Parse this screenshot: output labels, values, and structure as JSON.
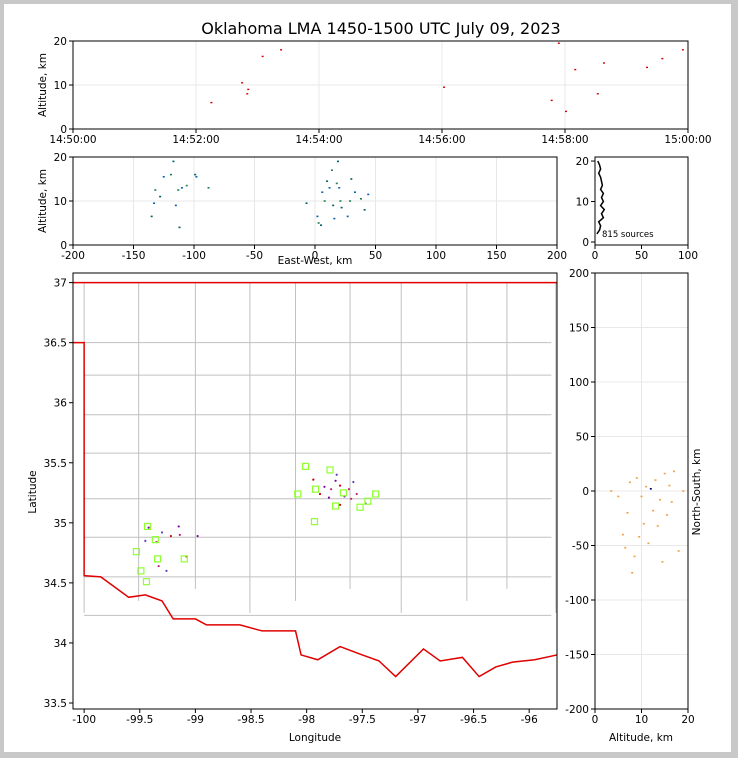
{
  "title": "Oklahoma LMA 1450-1500 UTC July 09, 2023",
  "chart_data": [
    {
      "type": "scatter",
      "panel": "altitude-time",
      "ylabel": "Altitude, km",
      "xlim": [
        "14:50:00",
        "15:00:00"
      ],
      "ylim": [
        0,
        20
      ],
      "x_ticks": [
        "14:50:00",
        "14:52:00",
        "14:54:00",
        "14:56:00",
        "14:58:00",
        "15:00:00"
      ],
      "y_ticks": [
        0,
        10,
        20
      ],
      "grid": true,
      "points": [
        {
          "t": "14:52:15",
          "alt": 6
        },
        {
          "t": "14:52:45",
          "alt": 10.5
        },
        {
          "t": "14:52:50",
          "alt": 8
        },
        {
          "t": "14:52:51",
          "alt": 9
        },
        {
          "t": "14:53:05",
          "alt": 16.5
        },
        {
          "t": "14:53:23",
          "alt": 18
        },
        {
          "t": "14:56:02",
          "alt": 9.5
        },
        {
          "t": "14:57:47",
          "alt": 6.5
        },
        {
          "t": "14:57:54",
          "alt": 19.5
        },
        {
          "t": "14:58:01",
          "alt": 4
        },
        {
          "t": "14:58:10",
          "alt": 13.5
        },
        {
          "t": "14:58:32",
          "alt": 8
        },
        {
          "t": "14:58:38",
          "alt": 15
        },
        {
          "t": "14:59:20",
          "alt": 14
        },
        {
          "t": "14:59:35",
          "alt": 16
        },
        {
          "t": "14:59:55",
          "alt": 18
        }
      ]
    },
    {
      "type": "scatter",
      "panel": "east-west-altitude",
      "xlabel": "East-West, km",
      "ylabel": "Altitude, km",
      "xlim": [
        -200,
        200
      ],
      "ylim": [
        0,
        20
      ],
      "x_ticks": [
        -200,
        -150,
        -100,
        -50,
        0,
        50,
        100,
        150,
        200
      ],
      "y_ticks": [
        0,
        10,
        20
      ],
      "grid": true,
      "points": [
        {
          "x": -135,
          "alt": 6.5
        },
        {
          "x": -133,
          "alt": 9.5
        },
        {
          "x": -132,
          "alt": 12.5
        },
        {
          "x": -128,
          "alt": 11
        },
        {
          "x": -125,
          "alt": 15.5
        },
        {
          "x": -119,
          "alt": 16
        },
        {
          "x": -117,
          "alt": 19
        },
        {
          "x": -115,
          "alt": 9
        },
        {
          "x": -113,
          "alt": 12.5
        },
        {
          "x": -112,
          "alt": 4
        },
        {
          "x": -110,
          "alt": 13
        },
        {
          "x": -106,
          "alt": 13.5
        },
        {
          "x": -99,
          "alt": 16
        },
        {
          "x": -98,
          "alt": 15.5
        },
        {
          "x": -88,
          "alt": 13
        },
        {
          "x": -7,
          "alt": 9.5
        },
        {
          "x": 2,
          "alt": 6.5
        },
        {
          "x": 3,
          "alt": 5
        },
        {
          "x": 5,
          "alt": 4.5
        },
        {
          "x": 6,
          "alt": 12
        },
        {
          "x": 8,
          "alt": 10
        },
        {
          "x": 10,
          "alt": 14.5
        },
        {
          "x": 12,
          "alt": 13
        },
        {
          "x": 14,
          "alt": 17
        },
        {
          "x": 15,
          "alt": 9
        },
        {
          "x": 16,
          "alt": 6
        },
        {
          "x": 18,
          "alt": 14
        },
        {
          "x": 19,
          "alt": 19
        },
        {
          "x": 20,
          "alt": 13
        },
        {
          "x": 21,
          "alt": 10
        },
        {
          "x": 22,
          "alt": 8.5
        },
        {
          "x": 27,
          "alt": 6.5
        },
        {
          "x": 29,
          "alt": 10
        },
        {
          "x": 30,
          "alt": 15
        },
        {
          "x": 33,
          "alt": 12
        },
        {
          "x": 38,
          "alt": 10.5
        },
        {
          "x": 41,
          "alt": 8
        },
        {
          "x": 44,
          "alt": 11.5
        }
      ]
    },
    {
      "type": "line",
      "panel": "altitude-histogram",
      "xlim": [
        0,
        100
      ],
      "ylim": [
        0,
        20
      ],
      "x_ticks": [
        0,
        50,
        100
      ],
      "y_ticks": [
        0,
        10,
        20
      ],
      "annotation": "815 sources",
      "counts_by_altitude": [
        {
          "alt": 2,
          "n": 2
        },
        {
          "alt": 3,
          "n": 5
        },
        {
          "alt": 4,
          "n": 6
        },
        {
          "alt": 5,
          "n": 4
        },
        {
          "alt": 6,
          "n": 9
        },
        {
          "alt": 7,
          "n": 7
        },
        {
          "alt": 8,
          "n": 10
        },
        {
          "alt": 9,
          "n": 6
        },
        {
          "alt": 10,
          "n": 9
        },
        {
          "alt": 11,
          "n": 7
        },
        {
          "alt": 12,
          "n": 9
        },
        {
          "alt": 13,
          "n": 6
        },
        {
          "alt": 14,
          "n": 8
        },
        {
          "alt": 15,
          "n": 7
        },
        {
          "alt": 16,
          "n": 6
        },
        {
          "alt": 17,
          "n": 4
        },
        {
          "alt": 18,
          "n": 6
        },
        {
          "alt": 19,
          "n": 5
        },
        {
          "alt": 20,
          "n": 3
        }
      ]
    },
    {
      "type": "scatter",
      "panel": "plan-view-map",
      "xlabel": "Longitude",
      "ylabel": "Latitude",
      "xlim": [
        -100.1,
        -95.75
      ],
      "ylim": [
        33.45,
        37.08
      ],
      "x_ticks": [
        -100.0,
        -99.5,
        -99.0,
        -98.5,
        -98.0,
        -97.5,
        -97.0,
        -96.5,
        -96.0
      ],
      "y_ticks": [
        33.5,
        34.0,
        34.5,
        35.0,
        35.5,
        36.0,
        36.5,
        37.0
      ],
      "stations_color": "#90ff30",
      "border_color": "#e00000",
      "stations": [
        {
          "lon": -99.43,
          "lat": 34.97
        },
        {
          "lon": -99.36,
          "lat": 34.86
        },
        {
          "lon": -99.53,
          "lat": 34.76
        },
        {
          "lon": -99.34,
          "lat": 34.7
        },
        {
          "lon": -99.1,
          "lat": 34.7
        },
        {
          "lon": -99.49,
          "lat": 34.6
        },
        {
          "lon": -99.44,
          "lat": 34.51
        },
        {
          "lon": -98.01,
          "lat": 35.47
        },
        {
          "lon": -97.79,
          "lat": 35.44
        },
        {
          "lon": -98.08,
          "lat": 35.24
        },
        {
          "lon": -97.92,
          "lat": 35.28
        },
        {
          "lon": -97.67,
          "lat": 35.25
        },
        {
          "lon": -97.74,
          "lat": 35.14
        },
        {
          "lon": -97.93,
          "lat": 35.01
        },
        {
          "lon": -97.52,
          "lat": 35.13
        },
        {
          "lon": -97.45,
          "lat": 35.18
        },
        {
          "lon": -97.38,
          "lat": 35.24
        }
      ],
      "sources": [
        {
          "lon": -99.42,
          "lat": 34.96
        },
        {
          "lon": -99.35,
          "lat": 34.84
        },
        {
          "lon": -99.3,
          "lat": 34.92
        },
        {
          "lon": -99.22,
          "lat": 34.89
        },
        {
          "lon": -99.15,
          "lat": 34.97
        },
        {
          "lon": -99.14,
          "lat": 34.9
        },
        {
          "lon": -99.26,
          "lat": 34.6
        },
        {
          "lon": -99.08,
          "lat": 34.72
        },
        {
          "lon": -98.98,
          "lat": 34.89
        },
        {
          "lon": -99.33,
          "lat": 34.64
        },
        {
          "lon": -99.45,
          "lat": 34.85
        },
        {
          "lon": -97.94,
          "lat": 35.36
        },
        {
          "lon": -97.84,
          "lat": 35.3
        },
        {
          "lon": -97.78,
          "lat": 35.28
        },
        {
          "lon": -97.73,
          "lat": 35.4
        },
        {
          "lon": -97.7,
          "lat": 35.31
        },
        {
          "lon": -97.66,
          "lat": 35.22
        },
        {
          "lon": -97.62,
          "lat": 35.28
        },
        {
          "lon": -97.58,
          "lat": 35.34
        },
        {
          "lon": -97.7,
          "lat": 35.15
        },
        {
          "lon": -97.8,
          "lat": 35.21
        },
        {
          "lon": -97.55,
          "lat": 35.24
        },
        {
          "lon": -97.47,
          "lat": 35.16
        },
        {
          "lon": -97.88,
          "lat": 35.24
        },
        {
          "lon": -97.74,
          "lat": 35.35
        },
        {
          "lon": -97.6,
          "lat": 35.2
        }
      ]
    },
    {
      "type": "scatter",
      "panel": "altitude-north-south",
      "xlabel": "Altitude, km",
      "ylabel": "North-South, km",
      "xlim": [
        0,
        20
      ],
      "ylim": [
        -200,
        200
      ],
      "x_ticks": [
        0,
        10,
        20
      ],
      "y_ticks": [
        -200,
        -150,
        -100,
        -50,
        0,
        50,
        100,
        150,
        200
      ],
      "points": [
        {
          "alt": 3.5,
          "y": 0
        },
        {
          "alt": 5,
          "y": -5
        },
        {
          "alt": 6,
          "y": -40
        },
        {
          "alt": 6.5,
          "y": -52
        },
        {
          "alt": 7,
          "y": -20
        },
        {
          "alt": 7.5,
          "y": 8
        },
        {
          "alt": 8,
          "y": -75
        },
        {
          "alt": 8.5,
          "y": -60
        },
        {
          "alt": 9,
          "y": 12
        },
        {
          "alt": 9.5,
          "y": -42
        },
        {
          "alt": 10,
          "y": -5
        },
        {
          "alt": 10.5,
          "y": -30
        },
        {
          "alt": 11,
          "y": 4
        },
        {
          "alt": 11.5,
          "y": -48
        },
        {
          "alt": 12,
          "y": 2
        },
        {
          "alt": 12.5,
          "y": -18
        },
        {
          "alt": 13,
          "y": 10
        },
        {
          "alt": 13.5,
          "y": -32
        },
        {
          "alt": 14,
          "y": -8
        },
        {
          "alt": 14.5,
          "y": -65
        },
        {
          "alt": 15,
          "y": 16
        },
        {
          "alt": 15.5,
          "y": -22
        },
        {
          "alt": 16,
          "y": 5
        },
        {
          "alt": 16.5,
          "y": -10
        },
        {
          "alt": 17,
          "y": 18
        },
        {
          "alt": 18,
          "y": -55
        },
        {
          "alt": 19,
          "y": 0
        }
      ]
    }
  ]
}
